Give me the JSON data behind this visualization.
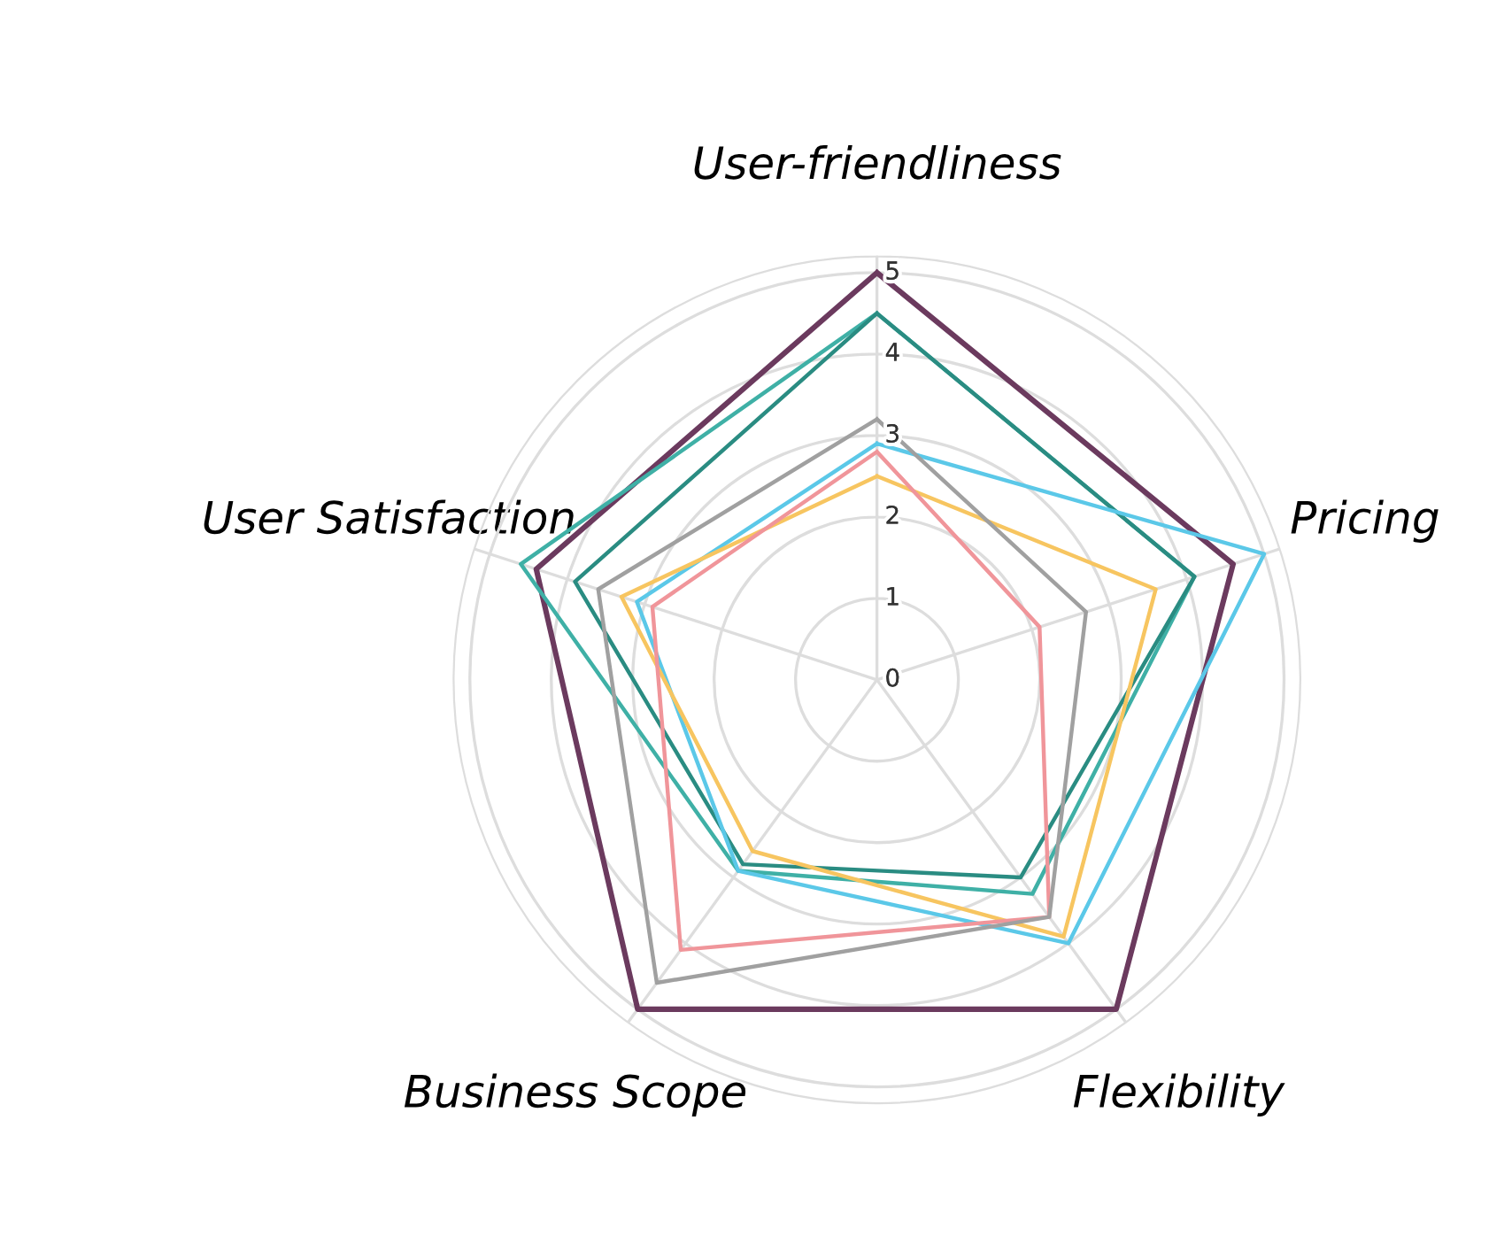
{
  "chart_data": {
    "type": "radar",
    "categories": [
      "User-friendliness",
      "Pricing",
      "Flexibility",
      "Business Scope",
      "User Satisfaction"
    ],
    "ylim": [
      0,
      5.2
    ],
    "yticks": [
      0,
      1,
      2,
      3,
      4,
      5
    ],
    "grid": true,
    "series": [
      {
        "color": "#6b3a5e",
        "values": [
          5,
          4.6,
          5,
          5,
          4.4
        ]
      },
      {
        "color": "#3fb0a6",
        "values": [
          4.5,
          4.1,
          3.25,
          2.9,
          4.6
        ]
      },
      {
        "color": "#2a8c82",
        "values": [
          4.5,
          4.1,
          3.0,
          2.8,
          3.9
        ]
      },
      {
        "color": "#5bc8e8",
        "values": [
          2.9,
          5,
          4,
          2.9,
          3.1
        ]
      },
      {
        "color": "#f7c560",
        "values": [
          2.5,
          3.6,
          3.9,
          2.6,
          3.3
        ]
      },
      {
        "color": "#f0959a",
        "values": [
          2.8,
          2.1,
          3.6,
          4.1,
          2.9
        ]
      },
      {
        "color": "#a0a0a0",
        "values": [
          3.2,
          2.7,
          3.6,
          4.6,
          3.6
        ]
      }
    ]
  }
}
